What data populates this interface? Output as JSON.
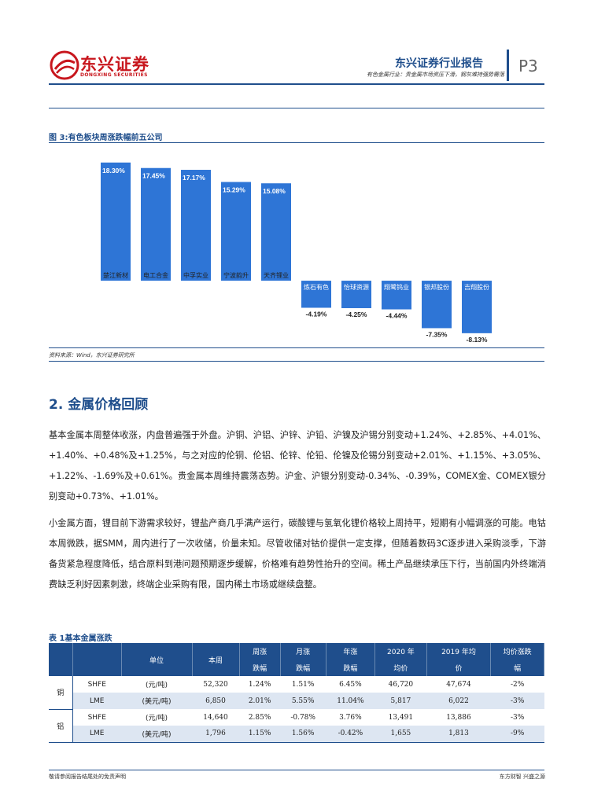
{
  "header": {
    "logo_cn": "东兴证券",
    "logo_en": "DONGXING SECURITIES",
    "report_name": "东兴证券行业报告",
    "report_subtitle": "有色金属行业：贵金属市场资压下滑，钢灰难持强势需落",
    "page_number": "P3",
    "colors": {
      "brand_red": "#c8161d",
      "brand_blue": "#1f4e8c",
      "bar_blue": "#2e75d6"
    }
  },
  "figure": {
    "title": "图 3:有色板块周涨跌幅前五公司",
    "source": "资料来源：Wind，东兴证券研究所"
  },
  "chart_data": {
    "type": "bar",
    "title": "图 3:有色板块周涨跌幅前五公司",
    "categories": [
      "楚江新材",
      "电工合金",
      "中孚实业",
      "宁波韵升",
      "天齐锂业",
      "炼石有色",
      "怡球资源",
      "翔鹭钨业",
      "银邦股份",
      "吉翔股份"
    ],
    "values": [
      18.3,
      17.45,
      17.17,
      15.29,
      15.08,
      -4.19,
      -4.25,
      -4.44,
      -7.35,
      -8.13
    ],
    "value_labels": [
      "18.30%",
      "17.45%",
      "17.17%",
      "15.29%",
      "15.08%",
      "-4.19%",
      "-4.25%",
      "-4.44%",
      "-7.35%",
      "-8.13%"
    ],
    "ylim": [
      -9,
      19
    ],
    "grid": false,
    "legend": "none"
  },
  "section": {
    "heading": "2. 金属价格回顾",
    "paragraph1": "基本金属本周整体收涨，内盘普遍强于外盘。沪铜、沪铝、沪锌、沪铅、沪镍及沪锡分别变动+1.24%、+2.85%、+4.01%、+1.40%、+0.48%及+1.25%，与之对应的伦铜、伦铝、伦锌、伦铅、伦镍及伦锡分别变动+2.01%、+1.15%、+3.05%、+1.22%、-1.69%及+0.61%。贵金属本周维持震荡态势。沪金、沪银分别变动-0.34%、-0.39%，COMEX金、COMEX银分别变动+0.73%、+1.01%。",
    "paragraph2": "小金属方面，锂目前下游需求较好，锂盐产商几乎满产运行，碳酸锂与氢氧化锂价格较上周持平，短期有小幅调涨的可能。电钴本周微跌，据SMM，周内进行了一次收储，价量未知。尽管收储对钴价提供一定支撑，但随着数码3C逐步进入采购淡季，下游备货紧急程度降低，结合原料到港问题预期逐步缓解，价格难有趋势性抬升的空间。稀土产品继续承压下行，当前国内外终端消费缺乏利好因素刺激，终端企业采购有限，国内稀土市场或继续盘整。"
  },
  "table": {
    "title": "表 1基本金属涨跌",
    "headers_row1": [
      "",
      "",
      "单位",
      "本周",
      "周涨",
      "月涨",
      "年涨",
      "2020 年",
      "2019 年均",
      "均价涨跌"
    ],
    "headers_row2": [
      "跌幅",
      "跌幅",
      "跌幅",
      "均价",
      "价",
      "幅"
    ],
    "rows": [
      {
        "metal": "铜",
        "exchange": "SHFE",
        "unit": "(元/吨)",
        "price": "52,320",
        "week": "1.24%",
        "month": "1.51%",
        "year": "6.45%",
        "avg2020": "46,720",
        "avg2019": "47,674",
        "avg_chg": "-2%"
      },
      {
        "metal": "",
        "exchange": "LME",
        "unit": "(美元/吨)",
        "price": "6,850",
        "week": "2.01%",
        "month": "5.55%",
        "year": "11.04%",
        "avg2020": "5,817",
        "avg2019": "6,022",
        "avg_chg": "-3%"
      },
      {
        "metal": "铝",
        "exchange": "SHFE",
        "unit": "(元/吨)",
        "price": "14,640",
        "week": "2.85%",
        "month": "-0.78%",
        "year": "3.76%",
        "avg2020": "13,491",
        "avg2019": "13,886",
        "avg_chg": "-3%"
      },
      {
        "metal": "",
        "exchange": "LME",
        "unit": "(美元/吨)",
        "price": "1,796",
        "week": "1.15%",
        "month": "1.56%",
        "year": "-0.42%",
        "avg2020": "1,655",
        "avg2019": "1,813",
        "avg_chg": "-9%"
      }
    ]
  },
  "footer": {
    "left": "敬请参阅报告结尾处的免责声明",
    "right": "东方财智  兴盛之源"
  }
}
